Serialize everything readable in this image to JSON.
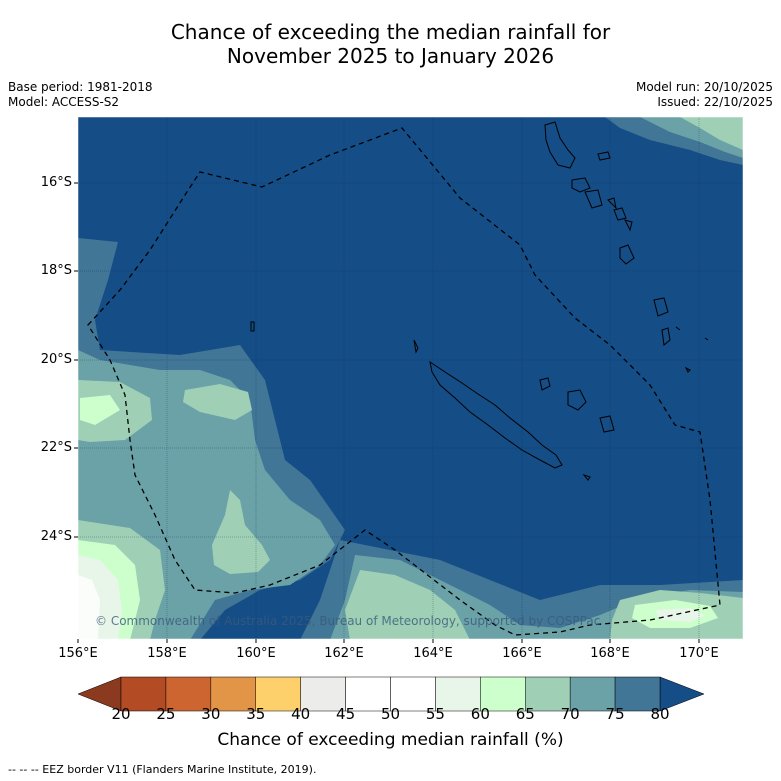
{
  "title_line1": "Chance of exceeding the median rainfall for",
  "title_line2": "November 2025 to January 2026",
  "base_period": "Base period: 1981-2018",
  "model": "Model: ACCESS-S2",
  "model_run": "Model run: 20/10/2025",
  "issued": "Issued: 22/10/2025",
  "copyright": "© Commonwealth of Australia 2025, Bureau of Meteorology, supported by COSPPac",
  "lat_labels": [
    "16°S",
    "18°S",
    "20°S",
    "22°S",
    "24°S"
  ],
  "lon_labels": [
    "156°E",
    "158°E",
    "160°E",
    "162°E",
    "164°E",
    "166°E",
    "168°E",
    "170°E"
  ],
  "colorbar": {
    "ticks": [
      "20",
      "25",
      "30",
      "35",
      "40",
      "45",
      "50",
      "55",
      "60",
      "65",
      "70",
      "75",
      "80"
    ],
    "colors": [
      "#8b3a1f",
      "#b34b24",
      "#cd6530",
      "#e39547",
      "#fdd06c",
      "#ececea",
      "#ffffff",
      "#ffffff",
      "#e8f5e9",
      "#ccffcc",
      "#9fd0b6",
      "#6aa2a7",
      "#417697",
      "#154d86"
    ],
    "title": "Chance of exceeding median rainfall (%)"
  },
  "footnote": "--  --  -- EEZ border V11 (Flanders Marine Institute, 2019)."
}
